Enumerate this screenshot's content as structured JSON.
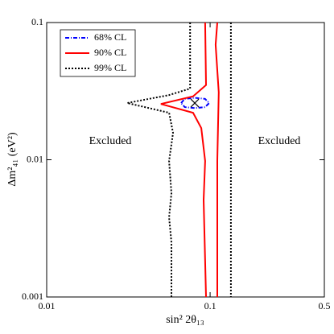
{
  "chart_data": {
    "type": "line",
    "x_label": "sin² 2θ₁₃",
    "y_label": "Δm²₄₁ (eV²)",
    "xscale": "log",
    "yscale": "log",
    "xlim": [
      0.01,
      0.5
    ],
    "ylim": [
      0.001,
      0.1
    ],
    "xticks": [
      0.01,
      0.1,
      0.5
    ],
    "yticks": [
      0.001,
      0.01,
      0.1
    ],
    "legend": "upper left",
    "annotations": [
      "Excluded",
      "Excluded"
    ],
    "best_fit": {
      "x": 0.0806,
      "y": 0.0259
    },
    "series": [
      {
        "name": "68% CL",
        "color": "#0000ff",
        "dash": "dashdot",
        "x": [
          0.0664,
          0.07,
          0.0806,
          0.093,
          0.0988,
          0.093,
          0.0806,
          0.07,
          0.0664
        ],
        "values": [
          0.0259,
          0.0278,
          0.0283,
          0.0278,
          0.0259,
          0.0242,
          0.0238,
          0.0242,
          0.0259
        ]
      },
      {
        "name": "90% CL",
        "color": "#ff0000",
        "dash": "solid",
        "x": [
          0.0933,
          0.0944,
          0.0787,
          0.05,
          0.0787,
          0.0883,
          0.0933,
          0.0913,
          0.0944,
          null,
          0.1107,
          0.108,
          0.113,
          0.1107,
          0.1107
        ],
        "values": [
          0.1,
          0.035,
          0.029,
          0.0255,
          0.022,
          0.017,
          0.0098,
          0.0051,
          0.001,
          null,
          0.1,
          0.069,
          0.031,
          0.0098,
          0.001
        ]
      },
      {
        "name": "99% CL",
        "color": "#000000",
        "dash": "dotted",
        "x": [
          0.0754,
          0.0754,
          0.0561,
          0.0311,
          0.0561,
          0.0593,
          0.0561,
          0.058,
          0.0561,
          0.058,
          0.058,
          null,
          0.134,
          0.134
        ],
        "values": [
          0.1,
          0.033,
          0.0296,
          0.0259,
          0.022,
          0.0157,
          0.0098,
          0.0057,
          0.0038,
          0.0025,
          0.001,
          null,
          0.1,
          0.001
        ]
      }
    ]
  }
}
